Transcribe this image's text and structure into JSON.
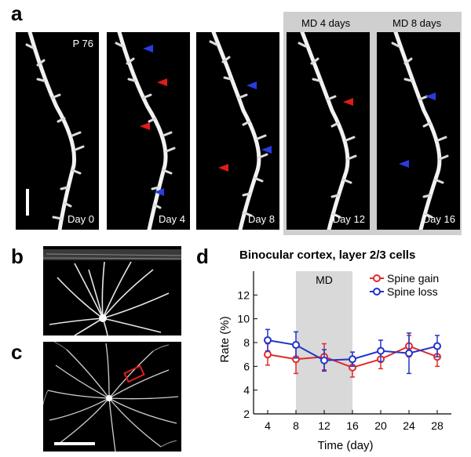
{
  "panel_letters": {
    "a": "a",
    "b": "b",
    "c": "c",
    "d": "d"
  },
  "panel_a": {
    "age_label": "P 76",
    "md_labels": [
      "MD 4 days",
      "MD 8 days"
    ],
    "day_labels": [
      "Day 0",
      "Day 4",
      "Day 8",
      "Day 12",
      "Day 16"
    ],
    "colors": {
      "gain_arrow": "#e01b1b",
      "loss_arrow": "#2a3be0",
      "md_shade": "#cfcfcf"
    }
  },
  "chart_data": {
    "type": "line",
    "title": "Binocular cortex, layer 2/3 cells",
    "xlabel": "Time (day)",
    "ylabel": "Rate (%)",
    "x": [
      4,
      8,
      12,
      16,
      20,
      24,
      28
    ],
    "xticks": [
      4,
      8,
      12,
      16,
      20,
      24,
      28
    ],
    "yticks": [
      2,
      4,
      6,
      8,
      10,
      12
    ],
    "xlim": [
      2,
      30
    ],
    "ylim": [
      2,
      14
    ],
    "shaded_region": {
      "x": [
        8,
        16
      ],
      "label": "MD"
    },
    "legend_position": "top-right",
    "series": [
      {
        "name": "Spine gain",
        "color": "#e22a2a",
        "values": [
          7.0,
          6.6,
          6.8,
          5.9,
          6.6,
          7.7,
          6.8
        ],
        "errors": [
          0.9,
          1.2,
          1.1,
          0.8,
          0.8,
          0.9,
          0.8
        ]
      },
      {
        "name": "Spine loss",
        "color": "#2233c8",
        "values": [
          8.2,
          7.8,
          6.5,
          6.6,
          7.3,
          7.1,
          7.7
        ],
        "errors": [
          0.9,
          1.1,
          0.9,
          0.6,
          0.9,
          1.7,
          0.9
        ]
      }
    ]
  }
}
